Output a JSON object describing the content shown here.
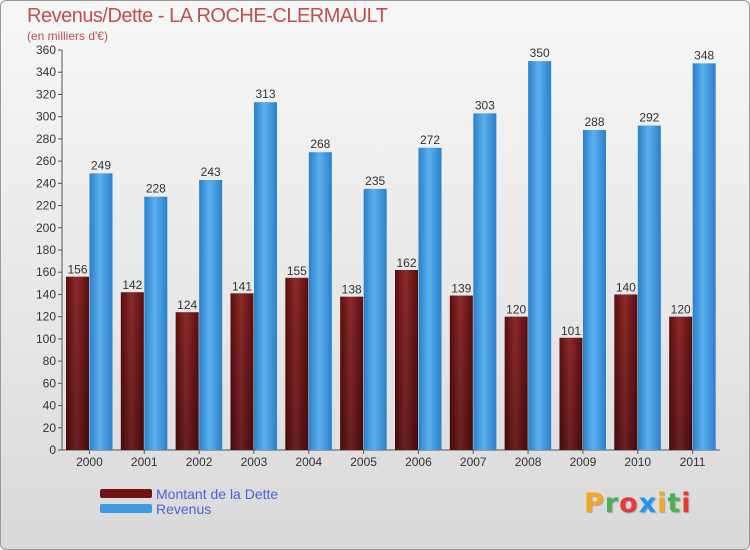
{
  "chart_data": {
    "type": "bar",
    "title": "Revenus/Dette - LA ROCHE-CLERMAULT",
    "subtitle": "(en milliers d'€)",
    "categories": [
      "2000",
      "2001",
      "2002",
      "2003",
      "2004",
      "2005",
      "2006",
      "2007",
      "2008",
      "2009",
      "2010",
      "2011"
    ],
    "series": [
      {
        "name": "Montant de la Dette",
        "color": "#7a1a1a",
        "values": [
          156,
          142,
          124,
          141,
          155,
          138,
          162,
          139,
          120,
          101,
          140,
          120
        ]
      },
      {
        "name": "Revenus",
        "color": "#3d9be0",
        "values": [
          249,
          228,
          243,
          313,
          268,
          235,
          272,
          303,
          350,
          288,
          292,
          348
        ]
      }
    ],
    "ylim": [
      0,
      360
    ],
    "yticks": [
      0,
      20,
      40,
      60,
      80,
      100,
      120,
      140,
      160,
      180,
      200,
      220,
      240,
      260,
      280,
      300,
      320,
      340,
      360
    ],
    "grid": false,
    "legend": "bottom-left"
  },
  "legend": {
    "debt_label": "Montant de la Dette",
    "revenue_label": "Revenus"
  },
  "logo": {
    "letters": [
      "P",
      "r",
      "o",
      "x",
      "i",
      "t",
      "i"
    ],
    "colors": [
      "#f5a623",
      "#4caf50",
      "#e53935",
      "#2196f3",
      "#f5a623",
      "#4caf50",
      "#e53935"
    ]
  }
}
